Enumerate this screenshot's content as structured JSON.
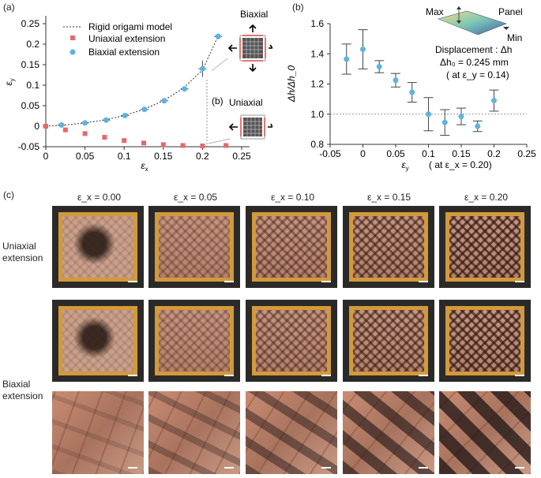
{
  "panel_a": {
    "label": "(a)",
    "chart_data": {
      "type": "scatter",
      "xlabel": "ε_x",
      "ylabel": "ε_y",
      "xlim": [
        0,
        0.25
      ],
      "ylim": [
        -0.05,
        0.25
      ],
      "x_ticks": [
        "0",
        "0.05",
        "0.1",
        "0.15",
        "0.2",
        "0.25"
      ],
      "y_ticks": [
        "-0.05",
        "0",
        "0.05",
        "0.1",
        "0.15",
        "0.2",
        "0.25"
      ],
      "legend": [
        "Rigid origami model",
        "Uniaxial extension",
        "Biaxial extension"
      ],
      "model_curve": [
        [
          0,
          0
        ],
        [
          0.025,
          0.003
        ],
        [
          0.05,
          0.008
        ],
        [
          0.075,
          0.015
        ],
        [
          0.1,
          0.026
        ],
        [
          0.125,
          0.041
        ],
        [
          0.15,
          0.062
        ],
        [
          0.175,
          0.092
        ],
        [
          0.2,
          0.137
        ],
        [
          0.22,
          0.22
        ]
      ],
      "uniaxial": [
        [
          0,
          0
        ],
        [
          0.025,
          -0.009
        ],
        [
          0.05,
          -0.018
        ],
        [
          0.075,
          -0.027
        ],
        [
          0.1,
          -0.035
        ],
        [
          0.125,
          -0.041
        ],
        [
          0.15,
          -0.045
        ],
        [
          0.175,
          -0.047
        ],
        [
          0.2,
          -0.048
        ],
        [
          0.23,
          -0.047
        ]
      ],
      "biaxial": [
        [
          0.02,
          0.003
        ],
        [
          0.05,
          0.008
        ],
        [
          0.077,
          0.015
        ],
        [
          0.101,
          0.026
        ],
        [
          0.126,
          0.041
        ],
        [
          0.151,
          0.062
        ],
        [
          0.177,
          0.091
        ],
        [
          0.2,
          0.14
        ],
        [
          0.22,
          0.219
        ]
      ],
      "biaxial_errors": [
        0.004,
        0.004,
        0.004,
        0.004,
        0.005,
        0.005,
        0.005,
        0.02,
        0.007
      ],
      "annotation_b": "(b)",
      "inset_biaxial": "Biaxial",
      "inset_uniaxial": "Uniaxial"
    }
  },
  "panel_b": {
    "label": "(b)",
    "chart_data": {
      "type": "scatter",
      "xlabel": "ε_y",
      "xlabel_note": "( at ε_x = 0.20)",
      "ylabel": "Δh/Δh_0",
      "xlim": [
        -0.05,
        0.25
      ],
      "ylim": [
        0.8,
        1.6
      ],
      "x_ticks": [
        "-0.05",
        "0",
        "0.05",
        "0.1",
        "0.15",
        "0.2",
        "0.25"
      ],
      "y_ticks": [
        "0.8",
        "1.0",
        "1.2",
        "1.4",
        "1.6"
      ],
      "x": [
        -0.025,
        0.0,
        0.025,
        0.05,
        0.075,
        0.1,
        0.125,
        0.15,
        0.175,
        0.2
      ],
      "y": [
        1.365,
        1.43,
        1.315,
        1.225,
        1.145,
        1.0,
        0.945,
        0.985,
        0.92,
        1.09
      ],
      "err": [
        0.1,
        0.13,
        0.04,
        0.045,
        0.065,
        0.11,
        0.085,
        0.055,
        0.035,
        0.07
      ],
      "reference_y": 1.0,
      "inset_max": "Max",
      "inset_panel": "Panel",
      "inset_min": "Min",
      "displacement_text": "Displacement : Δh",
      "dh0_text": "Δh₀  =  0.245  mm",
      "at_text": "( at ε_y = 0.14)"
    }
  },
  "panel_c": {
    "label": "(c)",
    "columns": [
      "ε_x = 0.00",
      "ε_x = 0.05",
      "ε_x = 0.10",
      "ε_x = 0.15",
      "ε_x = 0.20"
    ],
    "row_uniaxial": [
      "Uniaxial",
      "extension"
    ],
    "row_biaxial": [
      "Biaxial",
      "extension"
    ]
  }
}
